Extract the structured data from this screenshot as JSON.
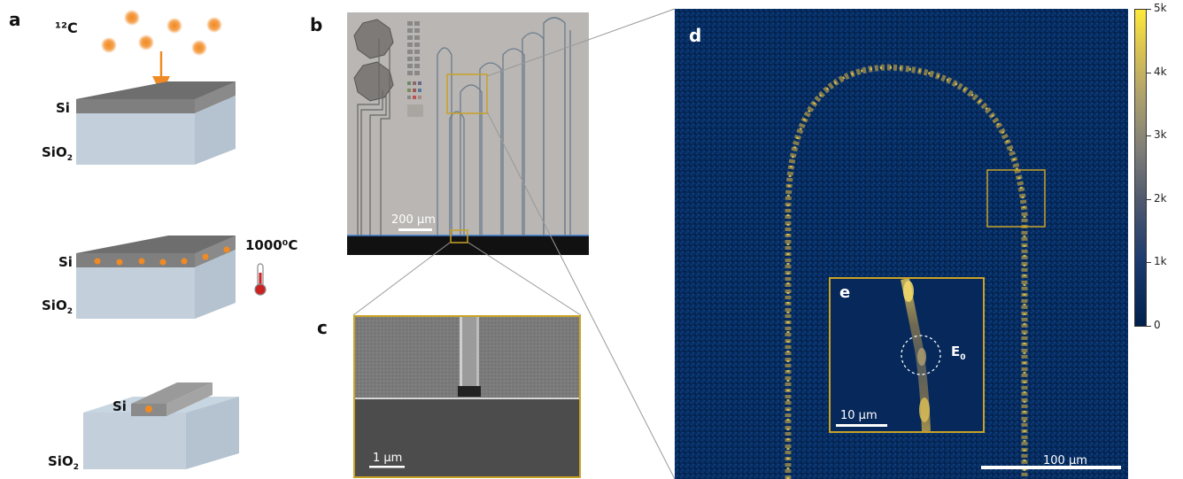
{
  "panels": {
    "a": "a",
    "b": "b",
    "c": "c",
    "d": "d",
    "e": "e"
  },
  "schematic": {
    "ion_label": "¹²C",
    "si_label": "Si",
    "sio2_base": "SiO",
    "sio2_sub": "2",
    "temperature": "1000⁰C"
  },
  "scalebars": {
    "micro": "200 μm",
    "sem": "1 μm",
    "inset": "10 μm",
    "map": "100 μm"
  },
  "emitter_label": {
    "base": "E",
    "sub": "0"
  },
  "colorbar": {
    "ticks": [
      "0",
      "1k",
      "2k",
      "3k",
      "4k",
      "5k"
    ],
    "max": 5000,
    "colors": [
      "#00204c",
      "#505a6e",
      "#aca06e",
      "#fde93a"
    ]
  },
  "colors": {
    "ion": "#f08a24",
    "highlight_box": "#c9a227",
    "si_top": "#7b7b7b",
    "oxide": "#c5d3df"
  }
}
